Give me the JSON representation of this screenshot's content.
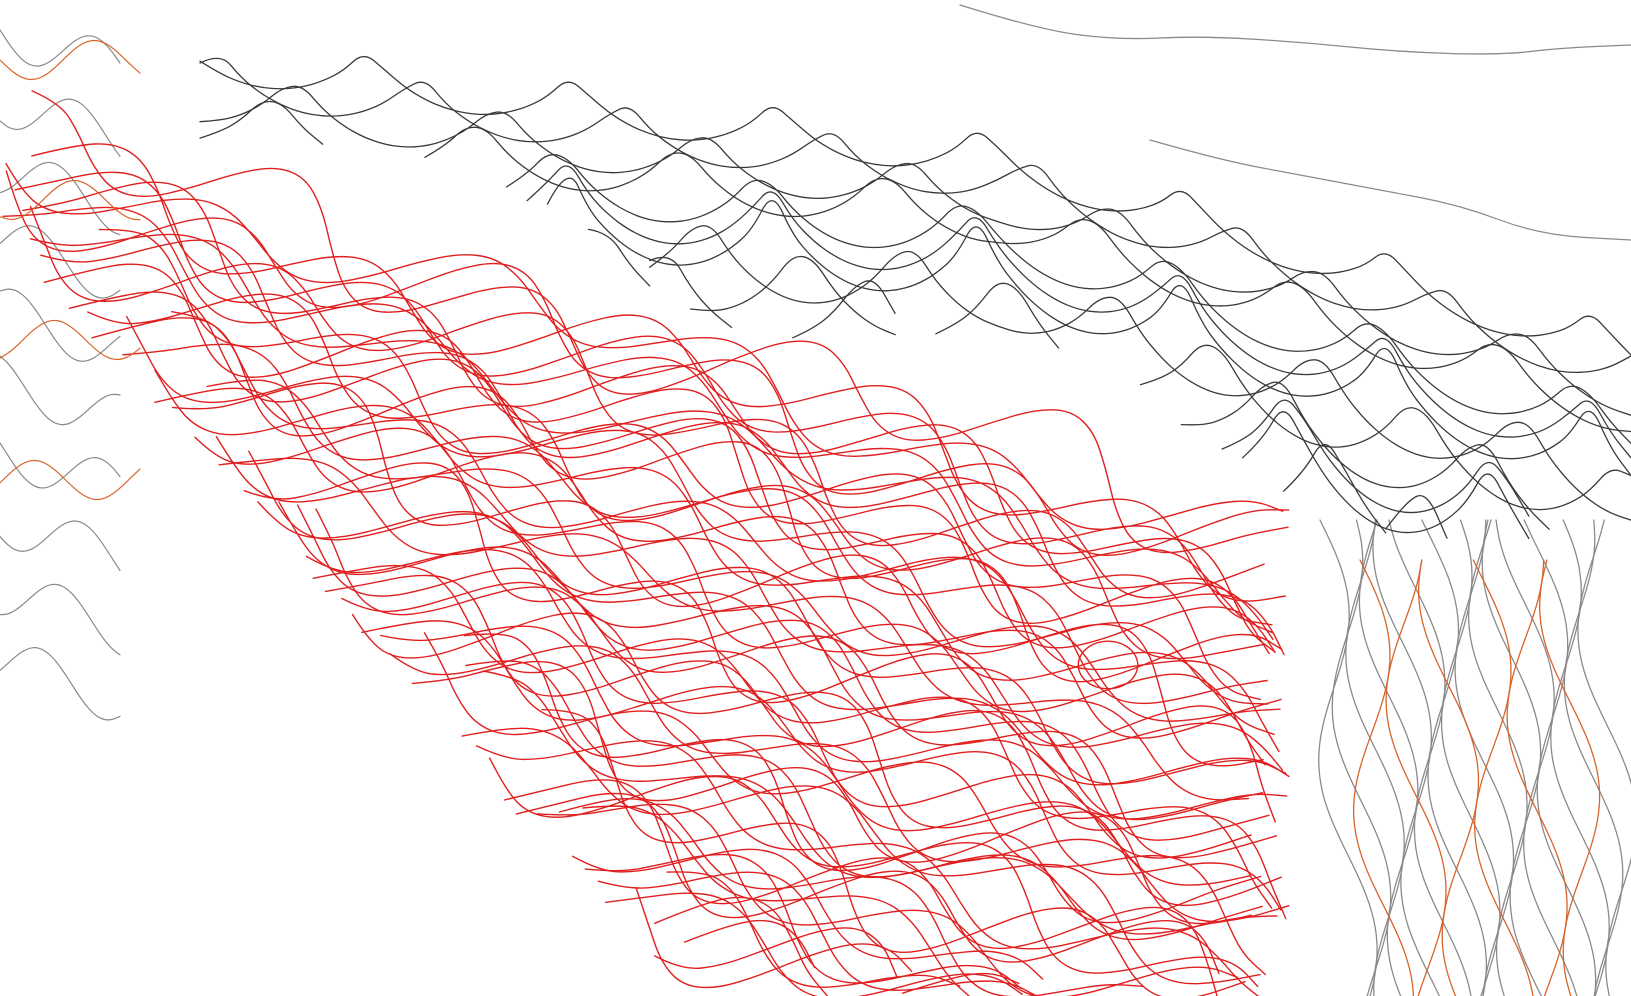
{
  "map": {
    "type": "topographic-contour-map",
    "labels": [],
    "colors": {
      "background": "#ffffff",
      "highlight_contours": "#e02020",
      "dark_contours": "#3a3a3a",
      "mid_contours": "#8a8a8a",
      "index_contours": "#d8642a"
    },
    "layers": [
      {
        "name": "",
        "color": "#8a8a8a",
        "region": "right-edge"
      },
      {
        "name": "",
        "color": "#3a3a3a",
        "region": "top-band"
      },
      {
        "name": "",
        "color": "#e02020",
        "region": "lower-left"
      }
    ]
  }
}
